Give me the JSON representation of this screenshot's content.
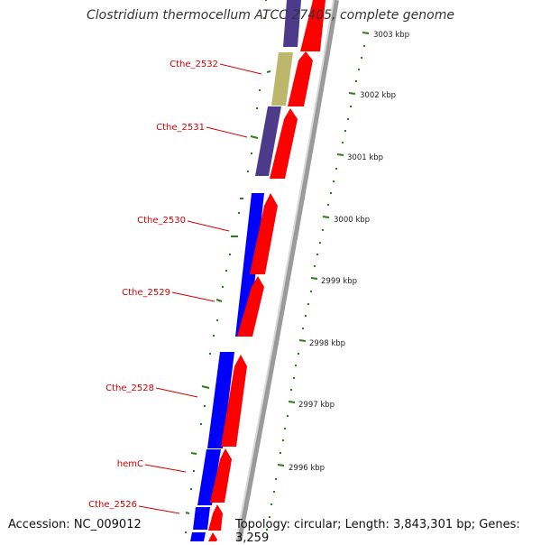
{
  "title": "Clostridium thermocellum ATCC 27405, complete genome",
  "accession": "Accession: NC_009012",
  "topology": "Topology: circular; Length: 3,843,301 bp; Genes: 3,259",
  "genes": [
    {
      "label": "Cthe_2532"
    },
    {
      "label": "Cthe_2531"
    },
    {
      "label": "Cthe_2530"
    },
    {
      "label": "Cthe_2529"
    },
    {
      "label": "Cthe_2528"
    },
    {
      "label": "hemC"
    },
    {
      "label": "Cthe_2526"
    }
  ],
  "ruler": [
    "3003 kbp",
    "3002 kbp",
    "3001 kbp",
    "3000 kbp",
    "2999 kbp",
    "2998 kbp",
    "2997 kbp",
    "2996 kbp"
  ],
  "colors": {
    "forward_cds": "#ff0000",
    "reverse_cds": "#0000ff",
    "reverse_cds_muted": "#4b3b8a",
    "olive_feature": "#bdb76b",
    "label": "#d40000",
    "tick": "#2a7d1a",
    "backbone": "#888888"
  }
}
